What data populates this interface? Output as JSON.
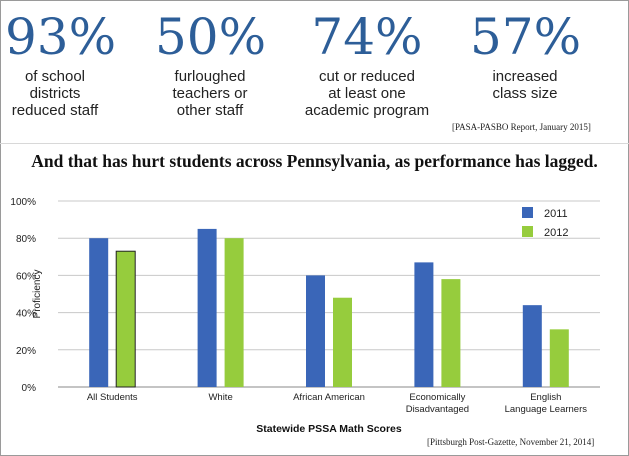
{
  "stats": [
    {
      "value": "93%",
      "lines": [
        "of school",
        "districts",
        "reduced staff"
      ]
    },
    {
      "value": "50%",
      "lines": [
        "furloughed",
        "teachers or",
        "other staff"
      ]
    },
    {
      "value": "74%",
      "lines": [
        "cut or reduced",
        "at least one",
        "academic program"
      ]
    },
    {
      "value": "57%",
      "lines": [
        "increased",
        "class size"
      ]
    }
  ],
  "top_citation": "[PASA-PASBO Report, January 2015]",
  "headline": "And that has hurt students across Pennsylvania, as performance  has lagged.",
  "bottom_citation": "[Pittsburgh Post-Gazette, November 21, 2014]",
  "colors": {
    "accent_number": "#2d5e98",
    "series_2011": "#3a66b8",
    "series_2012": "#96cc3d"
  },
  "chart_data": {
    "type": "bar",
    "title": "",
    "xlabel": "Statewide PSSA Math Scores",
    "ylabel": "Proficiency",
    "ylim": [
      0,
      100
    ],
    "yticks": [
      "0%",
      "20%",
      "40%",
      "60%",
      "80%",
      "100%"
    ],
    "ytick_values": [
      0,
      20,
      40,
      60,
      80,
      100
    ],
    "grid": true,
    "legend_position": "top-right",
    "categories": [
      [
        "All Students"
      ],
      [
        "White"
      ],
      [
        "African American"
      ],
      [
        "Economically",
        "Disadvantaged"
      ],
      [
        "English",
        "Language Learners"
      ]
    ],
    "series": [
      {
        "name": "2011",
        "color": "#3a66b8",
        "values": [
          80,
          85,
          60,
          67,
          44
        ]
      },
      {
        "name": "2012",
        "color": "#96cc3d",
        "values": [
          73,
          80,
          48,
          58,
          31
        ]
      }
    ]
  }
}
